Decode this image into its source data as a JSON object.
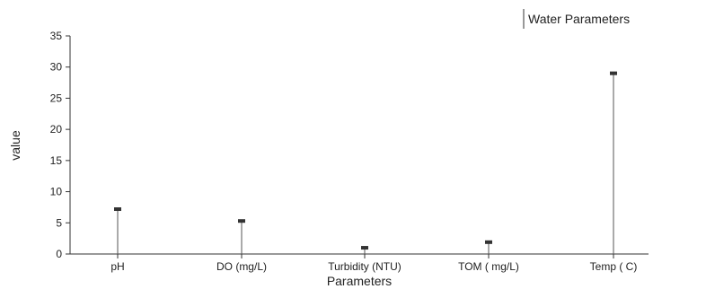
{
  "chart_data": {
    "type": "scatter",
    "title": "",
    "xlabel": "Parameters",
    "ylabel": "value",
    "categories": [
      "pH",
      "DO (mg/L)",
      "Turbidity (NTU)",
      "TOM ( mg/L)",
      "Temp ( C)"
    ],
    "series": [
      {
        "name": "Water Parameters",
        "values": [
          7.2,
          5.3,
          1.0,
          1.9,
          29.0
        ]
      }
    ],
    "ylim": [
      0,
      35
    ],
    "yticks": [
      0,
      5,
      10,
      15,
      20,
      25,
      30,
      35
    ],
    "drop_lines": true,
    "grid": false,
    "legend_position": "top-right",
    "colors": {
      "marker": "#333333",
      "line": "#555555",
      "axis": "#333333"
    }
  }
}
